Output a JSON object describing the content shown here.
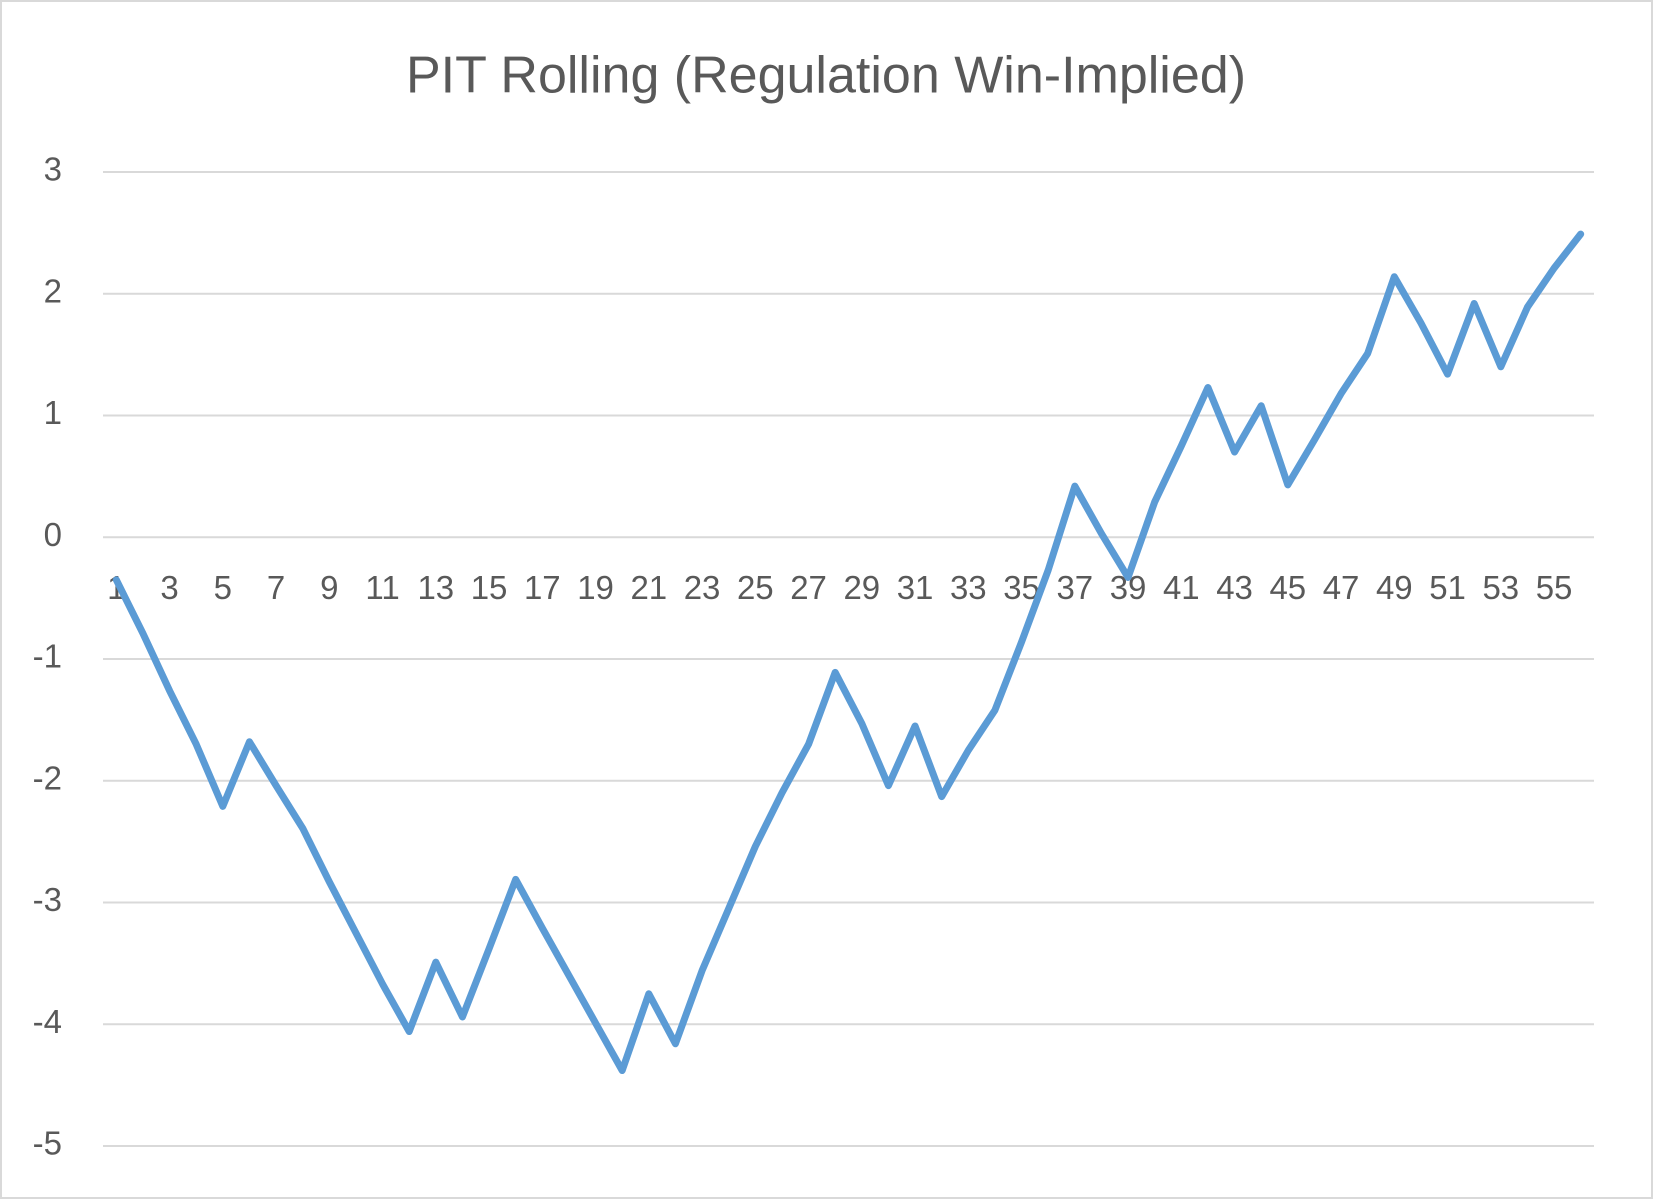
{
  "chart_data": {
    "type": "line",
    "title": "PIT Rolling (Regulation Win-Implied)",
    "categories": [
      1,
      null,
      3,
      null,
      5,
      null,
      7,
      null,
      9,
      null,
      11,
      null,
      13,
      null,
      15,
      null,
      17,
      null,
      19,
      null,
      21,
      null,
      23,
      null,
      25,
      null,
      27,
      null,
      29,
      null,
      31,
      null,
      33,
      null,
      35,
      null,
      37,
      null,
      39,
      null,
      41,
      null,
      43,
      null,
      45,
      null,
      47,
      null,
      49,
      null,
      51,
      null,
      53,
      null,
      55,
      null
    ],
    "series": [
      {
        "name": "PIT",
        "color": "#5b9bd5",
        "values": [
          -0.35,
          -0.79,
          -1.26,
          -1.7,
          -2.21,
          -1.68,
          -2.04,
          -2.39,
          -2.83,
          -3.25,
          -3.67,
          -4.06,
          -3.49,
          -3.94,
          -3.38,
          -2.81,
          -3.21,
          -3.6,
          -3.99,
          -4.38,
          -3.75,
          -4.16,
          -3.56,
          -3.05,
          -2.54,
          -2.1,
          -1.7,
          -1.11,
          -1.53,
          -2.04,
          -1.55,
          -2.13,
          -1.75,
          -1.42,
          -0.86,
          -0.27,
          0.42,
          0.03,
          -0.33,
          0.29,
          0.75,
          1.23,
          0.7,
          1.08,
          0.43,
          0.8,
          1.18,
          1.51,
          2.14,
          1.76,
          1.34,
          1.92,
          1.4,
          1.89,
          2.21,
          2.49
        ]
      }
    ],
    "ylim": [
      -5,
      3
    ],
    "yticks": [
      -5,
      -4,
      -3,
      -2,
      -1,
      0,
      1,
      2,
      3
    ],
    "grid": true
  }
}
